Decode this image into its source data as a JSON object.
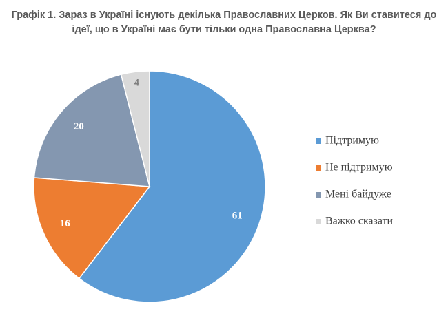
{
  "chart_data": {
    "type": "pie",
    "title": "Графік 1. Зараз в Україні існують декілька Православних Церков. Як Ви ставитеся до ідеї, що в Україні має бути тільки одна Православна Церква?",
    "categories": [
      "Підтримую",
      "Не підтримую",
      "Мені байдуже",
      "Важко сказати"
    ],
    "values": [
      61,
      16,
      20,
      4
    ],
    "colors": [
      "#5b9bd5",
      "#ed7d31",
      "#8497b0",
      "#d9d9d9"
    ],
    "legend": "right"
  }
}
